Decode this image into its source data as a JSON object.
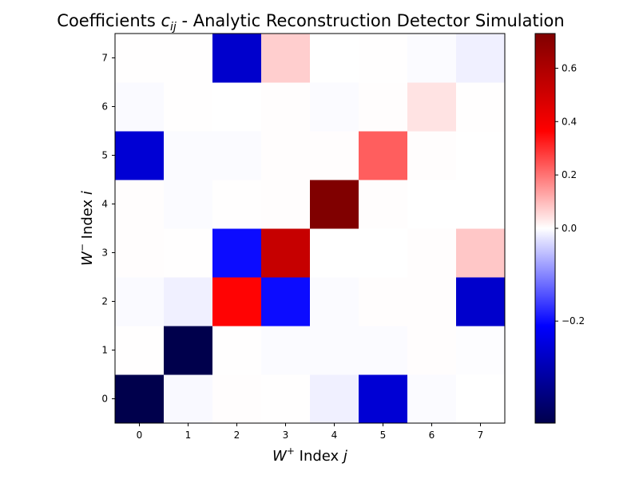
{
  "chart_data": {
    "type": "heatmap",
    "title": {
      "prefix": "Coefficients ",
      "symbol": "c",
      "subscript": "ij",
      "suffix": " - Analytic Reconstruction Detector Simulation"
    },
    "xlabel": {
      "symbol": "W",
      "superscript": "+",
      "text": " Index ",
      "index": "j"
    },
    "ylabel": {
      "symbol": "W",
      "superscript": "−",
      "text": " Index ",
      "index": "i"
    },
    "x_ticks": [
      "0",
      "1",
      "2",
      "3",
      "4",
      "5",
      "6",
      "7"
    ],
    "y_ticks": [
      "0",
      "1",
      "2",
      "3",
      "4",
      "5",
      "6",
      "7"
    ],
    "rows_note": "values[i][j], i = W- index (row, 0 at bottom), j = W+ index (column)",
    "values": [
      [
        -0.42,
        -0.005,
        0.003,
        0.002,
        -0.012,
        -0.26,
        -0.003,
        0.0
      ],
      [
        0.002,
        -0.42,
        0.002,
        -0.003,
        -0.003,
        -0.003,
        0.003,
        -0.002
      ],
      [
        -0.004,
        -0.012,
        0.36,
        -0.2,
        -0.003,
        0.003,
        0.003,
        -0.27
      ],
      [
        0.003,
        0.002,
        -0.2,
        0.53,
        0.0,
        0.0,
        0.003,
        0.08
      ],
      [
        0.003,
        -0.003,
        0.002,
        0.003,
        0.73,
        0.003,
        0.0,
        0.0
      ],
      [
        -0.26,
        -0.003,
        -0.003,
        0.003,
        0.003,
        0.23,
        0.003,
        0.0
      ],
      [
        -0.004,
        0.002,
        0.0,
        0.003,
        -0.003,
        0.003,
        0.04,
        0.002
      ],
      [
        0.002,
        0.002,
        -0.27,
        0.07,
        0.0,
        0.002,
        -0.003,
        -0.012
      ]
    ],
    "colormap": "seismic",
    "vmin": -0.42,
    "vmax": 0.73,
    "colorbar": {
      "ticks": [
        -0.2,
        0.0,
        0.2,
        0.4,
        0.6
      ],
      "tick_labels": [
        "−0.2",
        "0.0",
        "0.2",
        "0.4",
        "0.6"
      ]
    },
    "grid": false
  }
}
